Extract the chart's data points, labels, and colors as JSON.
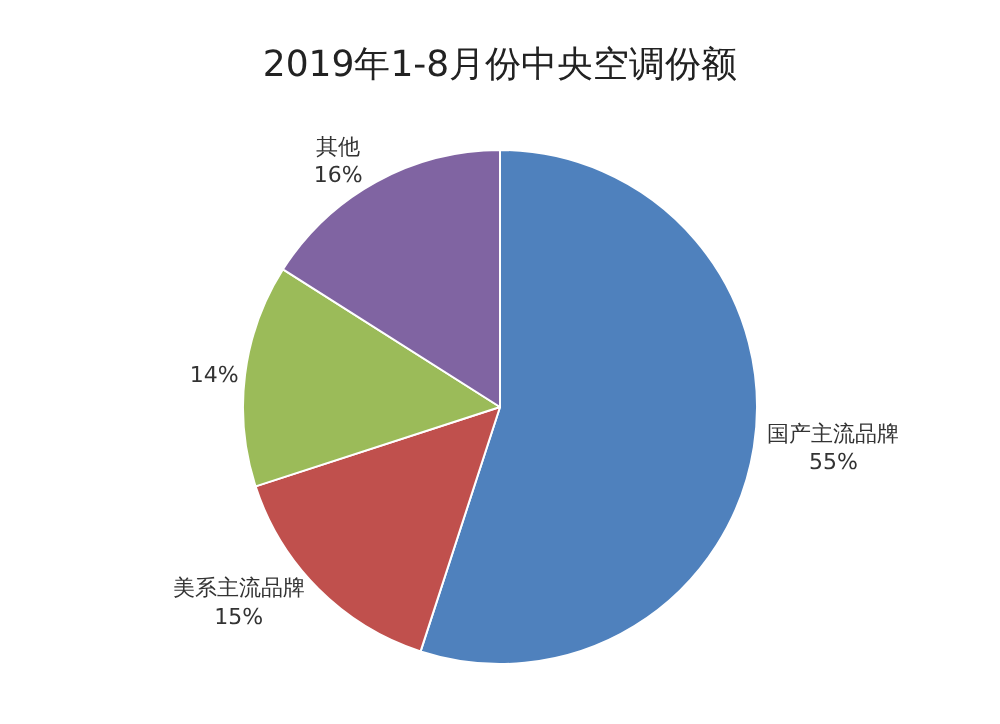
{
  "chart_data": {
    "type": "pie",
    "title": "2019年1-8月份中央空调份额",
    "categories": [
      "国产主流品牌",
      "美系主流品牌",
      null,
      "其他"
    ],
    "values": [
      55,
      15,
      14,
      16
    ],
    "value_labels": [
      "55%",
      "15%",
      "14%",
      "16%"
    ],
    "colors": [
      "#4f81bd",
      "#c0504d",
      "#9bbb59",
      "#8064a2"
    ],
    "legend": false
  }
}
